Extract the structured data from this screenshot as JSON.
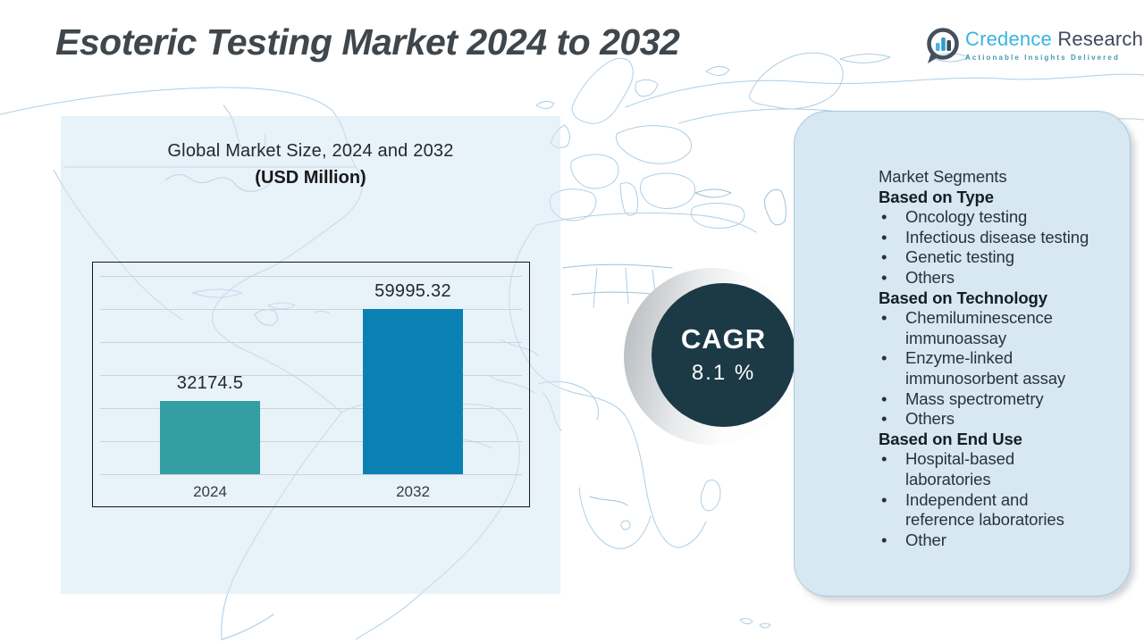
{
  "page": {
    "title": "Esoteric Testing Market 2024 to 2032"
  },
  "logo": {
    "name_primary": "Credence",
    "name_secondary": "Research",
    "tagline": "Actionable Insights Delivered",
    "colors": {
      "primary": "#3bb3e0",
      "secondary": "#3e4a59",
      "tagline": "#4897b2"
    }
  },
  "chart": {
    "title_line1": "Global Market Size, 2024 and 2032",
    "title_line2": "(USD Million)"
  },
  "chart_data": {
    "type": "bar",
    "title": "Global Market Size, 2024 and 2032 (USD Million)",
    "unit": "USD Million",
    "categories": [
      "2024",
      "2032"
    ],
    "values": [
      32174.5,
      59995.32
    ],
    "value_labels": [
      "32174.5",
      "59995.32"
    ],
    "bar_colors": [
      "#339fa2",
      "#0a81b2"
    ],
    "ylim": [
      10000,
      70000
    ],
    "gridlines": 7,
    "grid": true,
    "legend": "none"
  },
  "cagr": {
    "label": "CAGR",
    "value": "8.1 %",
    "circle_color": "#1c3946"
  },
  "segments": {
    "items": [
      {
        "type": "title",
        "text": "Market Segments"
      },
      {
        "type": "header",
        "text": "Based on Type"
      },
      {
        "type": "bullet",
        "text": "Oncology testing",
        "lines": [
          "Oncology testing"
        ]
      },
      {
        "type": "bullet",
        "text": "Infectious disease testing",
        "lines": [
          "Infectious disease testing"
        ]
      },
      {
        "type": "bullet",
        "text": "Genetic testing",
        "lines": [
          "Genetic testing"
        ]
      },
      {
        "type": "bullet",
        "text": "Others",
        "lines": [
          "Others"
        ]
      },
      {
        "type": "header",
        "text": "Based on Technology"
      },
      {
        "type": "bullet",
        "text": "Chemiluminescence immunoassay",
        "lines": [
          "Chemiluminescence",
          "immunoassay"
        ]
      },
      {
        "type": "bullet",
        "text": "Enzyme-linked immunosorbent assay",
        "lines": [
          "Enzyme-linked",
          "immunosorbent assay"
        ]
      },
      {
        "type": "bullet",
        "text": "Mass spectrometry",
        "lines": [
          "Mass spectrometry"
        ]
      },
      {
        "type": "bullet",
        "text": "Others",
        "lines": [
          "Others"
        ]
      },
      {
        "type": "header",
        "text": "Based on End Use"
      },
      {
        "type": "bullet",
        "text": "Hospital-based laboratories",
        "lines": [
          "Hospital-based",
          "laboratories"
        ]
      },
      {
        "type": "bullet",
        "text": "Independent and reference laboratories",
        "lines": [
          "Independent and",
          "reference laboratories"
        ]
      },
      {
        "type": "bullet",
        "text": "Other",
        "lines": [
          "Other"
        ]
      }
    ]
  },
  "colors": {
    "bar_2024": "#339fa2",
    "bar_2032": "#0a81b2",
    "cagr_circle": "#1c3946",
    "panel_bg": "#d7e8f3",
    "tint_bg": "#e9f1f8",
    "map_stroke": "#aecfe4"
  }
}
